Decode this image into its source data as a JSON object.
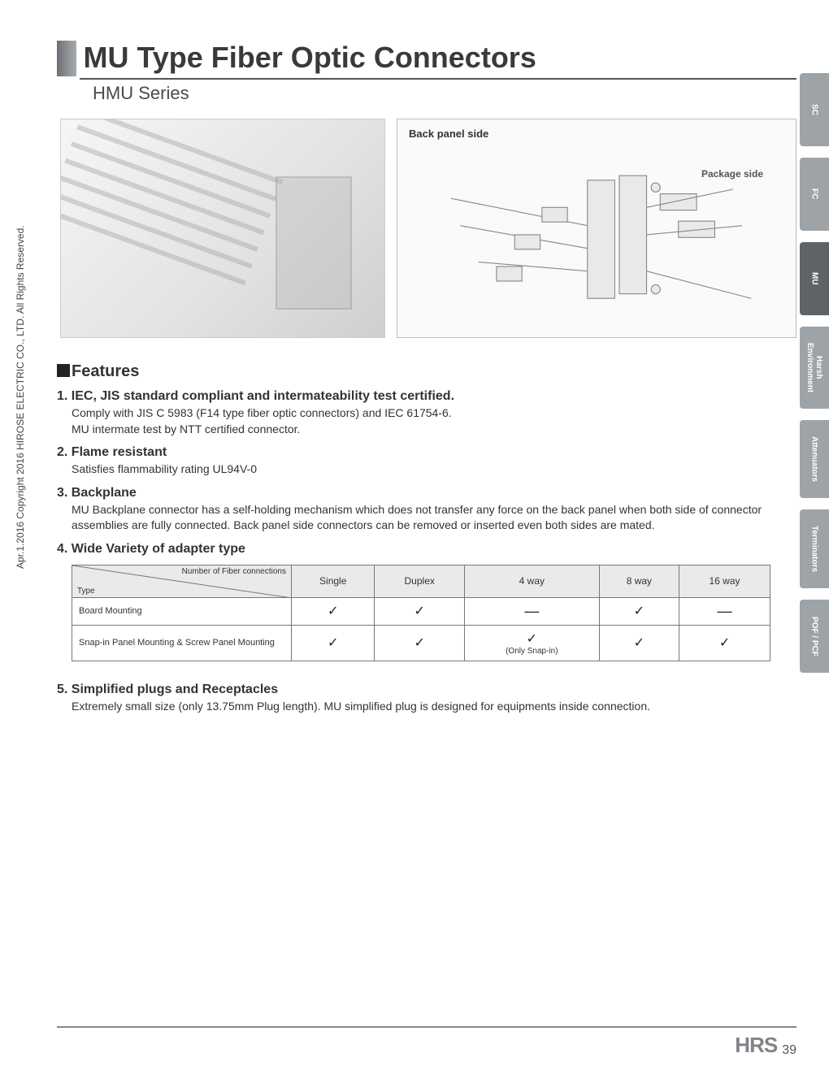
{
  "copyright": "Apr.1.2016  Copyright 2016 HIROSE ELECTRIC CO., LTD. All Rights Reserved.",
  "title": "MU Type Fiber Optic Connectors",
  "subtitle": "HMU Series",
  "diagram": {
    "back_label": "Back panel side",
    "package_label": "Package side"
  },
  "side_tabs": [
    "SC",
    "FC",
    "MU",
    "Harsh\nEnvironment",
    "Attenuators",
    "Terminators",
    "POF / PCF"
  ],
  "active_tab_index": 2,
  "features_heading": "Features",
  "features": [
    {
      "num": "1.",
      "title": "IEC, JIS standard compliant and intermateability test certified.",
      "body": "Comply with JIS C 5983 (F14 type fiber optic connectors) and IEC 61754-6.\nMU intermate test by NTT certified connector."
    },
    {
      "num": "2.",
      "title": "Flame resistant",
      "body": "Satisfies flammability rating UL94V-0"
    },
    {
      "num": "3.",
      "title": "Backplane",
      "body": "MU Backplane connector has a self-holding mechanism which does not transfer any force on the back panel when both side of connector assemblies are fully connected. Back panel side connectors can be removed or inserted even both sides are mated."
    },
    {
      "num": "4.",
      "title": "Wide Variety of adapter type",
      "body": ""
    }
  ],
  "table": {
    "diag_top": "Number of Fiber connections",
    "diag_bottom": "Type",
    "columns": [
      "Single",
      "Duplex",
      "4 way",
      "8 way",
      "16 way"
    ],
    "rows": [
      {
        "label": "Board Mounting",
        "cells": [
          "check",
          "check",
          "dash",
          "check",
          "dash"
        ]
      },
      {
        "label": "Snap-in Panel Mounting & Screw Panel Mounting",
        "cells": [
          "check",
          "check",
          "check_note",
          "check",
          "check"
        ]
      }
    ],
    "snap_note": "(Only Snap-in)"
  },
  "feature5": {
    "num": "5.",
    "title": "Simplified plugs and Receptacles",
    "body": "Extremely small size (only 13.75mm Plug length).  MU simplified plug is designed for equipments inside connection."
  },
  "footer": {
    "logo": "HRS",
    "page": "39"
  },
  "colors": {
    "tab_inactive": "#9ea3a7",
    "tab_active": "#5f6367",
    "rule": "#555555",
    "border": "#777777",
    "header_bg": "#eaeaea"
  }
}
